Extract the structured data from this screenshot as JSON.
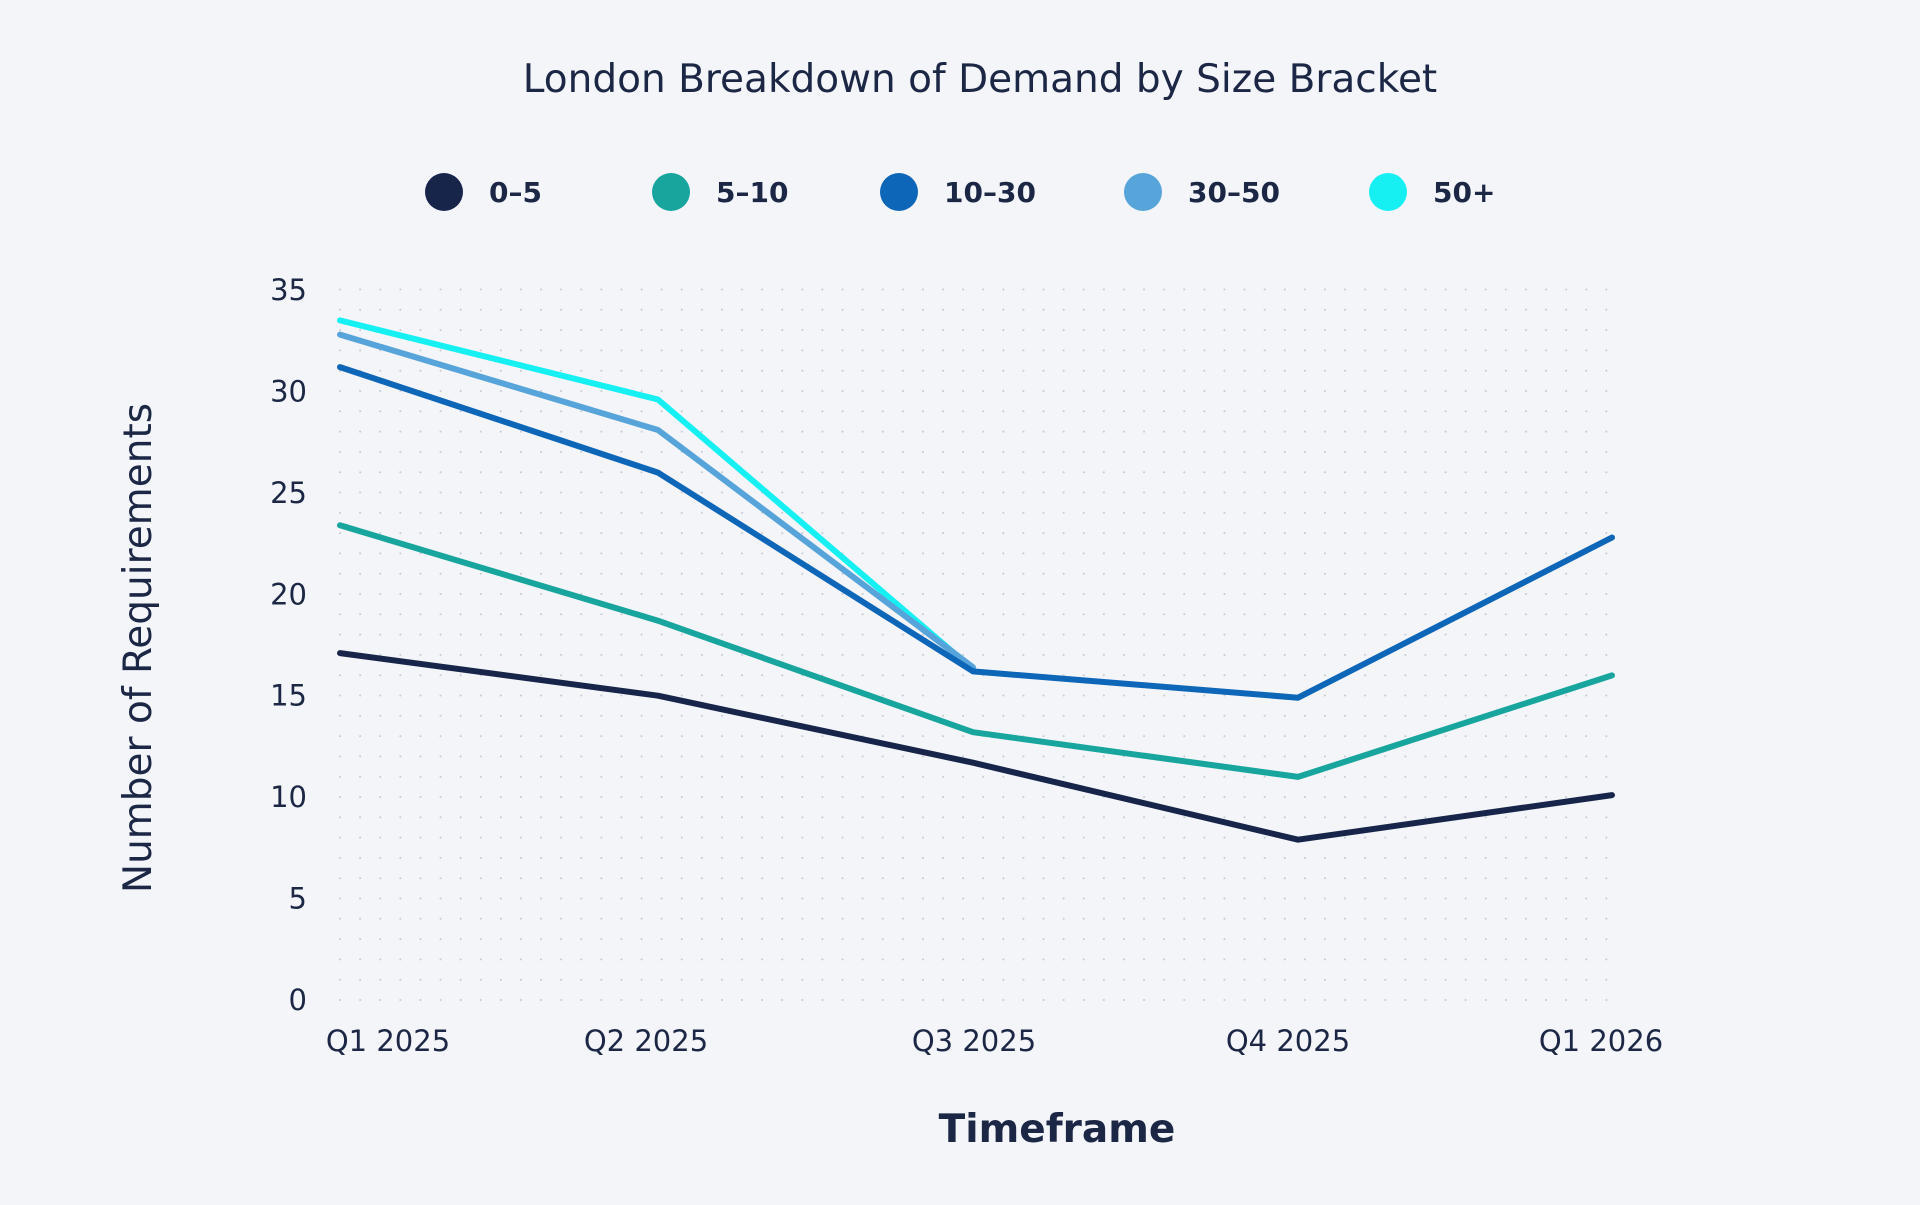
{
  "chart_data": {
    "type": "line",
    "title": "London Breakdown of Demand by Size Bracket",
    "xlabel": "Timeframe",
    "ylabel": "Number of Requirements",
    "categories": [
      "Q1 2025",
      "Q2 2025",
      "Q3 2025",
      "Q4 2025",
      "Q1 2026"
    ],
    "y_ticks": [
      "0",
      "5",
      "10",
      "15",
      "20",
      "25",
      "30",
      "35"
    ],
    "ylim": [
      0,
      35
    ],
    "grid": "dotted",
    "legend_position": "top",
    "series": [
      {
        "name": "0–5",
        "color": "#18254a",
        "values": [
          17.1,
          15.0,
          11.7,
          7.9,
          10.1
        ]
      },
      {
        "name": "5–10",
        "color": "#17a59e",
        "values": [
          23.4,
          18.7,
          13.2,
          11.0,
          16.0
        ]
      },
      {
        "name": "10–30",
        "color": "#0e66b8",
        "values": [
          31.2,
          26.0,
          16.2,
          14.9,
          22.8
        ]
      },
      {
        "name": "30–50",
        "color": "#56a4d9",
        "values": [
          32.8,
          28.1,
          16.4,
          null,
          null
        ]
      },
      {
        "name": "50+",
        "color": "#17f0f2",
        "values": [
          33.5,
          29.6,
          16.3,
          null,
          null
        ]
      }
    ]
  }
}
